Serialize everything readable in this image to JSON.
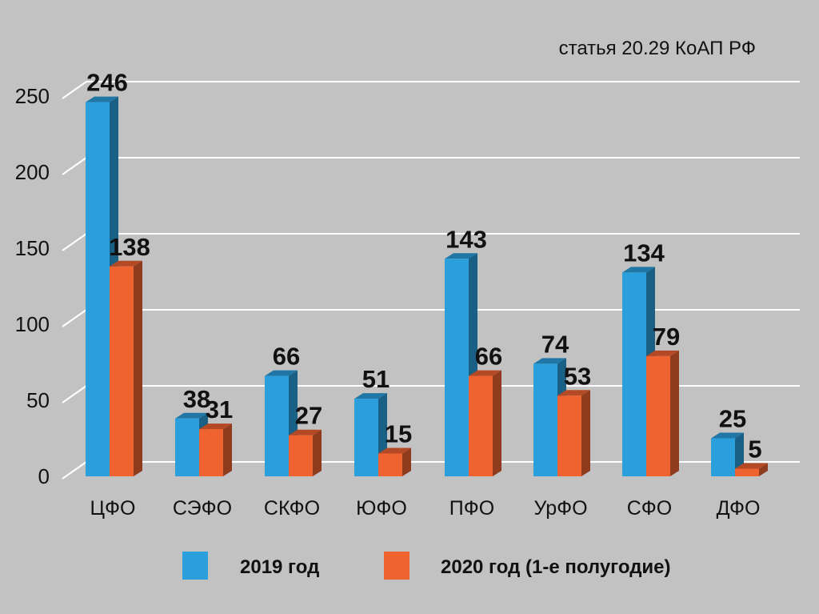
{
  "chart_data": {
    "type": "bar",
    "title": "статья 20.29 КоАП РФ",
    "categories": [
      "ЦФО",
      "СЭФО",
      "СКФО",
      "ЮФО",
      "ПФО",
      "УрФО",
      "СФО",
      "ДФО"
    ],
    "series": [
      {
        "name": "2019 год",
        "values": [
          246,
          38,
          66,
          51,
          143,
          74,
          134,
          25
        ],
        "color": "#2b9fdc"
      },
      {
        "name": "2020 год (1-е полугодие)",
        "values": [
          138,
          31,
          27,
          15,
          66,
          53,
          79,
          5
        ],
        "color": "#ef6331"
      }
    ],
    "yticks": [
      0,
      50,
      100,
      150,
      200,
      250
    ],
    "ylim": [
      0,
      250
    ],
    "grid": true,
    "legend_position": "bottom",
    "background": "#c2c2c2"
  }
}
